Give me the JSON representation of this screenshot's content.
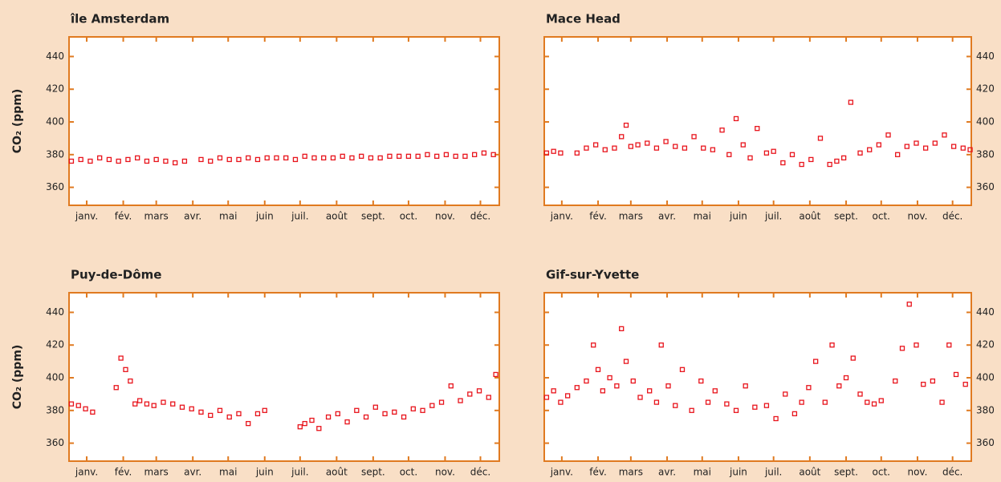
{
  "chart_data": [
    {
      "type": "scatter",
      "title": "île Amsterdam",
      "ylabel": "CO₂ (ppm)",
      "yaxis": "left",
      "color": "#e8141c",
      "x": [
        2,
        10,
        18,
        26,
        34,
        42,
        50,
        58,
        66,
        74,
        82,
        90,
        98,
        112,
        120,
        128,
        136,
        144,
        152,
        160,
        168,
        176,
        184,
        192,
        200,
        208,
        216,
        224,
        232,
        240,
        248,
        256,
        264,
        272,
        280,
        288,
        296,
        304,
        312,
        320,
        328,
        336,
        344,
        352,
        360
      ],
      "values": [
        376,
        377,
        376,
        378,
        377,
        376,
        377,
        378,
        376,
        377,
        376,
        375,
        376,
        377,
        376,
        378,
        377,
        377,
        378,
        377,
        378,
        378,
        378,
        377,
        379,
        378,
        378,
        378,
        379,
        378,
        379,
        378,
        378,
        379,
        379,
        379,
        379,
        380,
        379,
        380,
        379,
        379,
        380,
        381,
        380
      ],
      "xlim": [
        0,
        365
      ],
      "xticks": [
        {
          "value": 15,
          "label": "janv."
        },
        {
          "value": 46,
          "label": "fév."
        },
        {
          "value": 74,
          "label": "mars"
        },
        {
          "value": 105,
          "label": "avr."
        },
        {
          "value": 135,
          "label": "mai"
        },
        {
          "value": 166,
          "label": "juin"
        },
        {
          "value": 196,
          "label": "juil."
        },
        {
          "value": 227,
          "label": "août"
        },
        {
          "value": 258,
          "label": "sept."
        },
        {
          "value": 288,
          "label": "oct."
        },
        {
          "value": 319,
          "label": "nov."
        },
        {
          "value": 349,
          "label": "déc."
        }
      ],
      "ylim": [
        349,
        452
      ],
      "yticks": [
        360,
        380,
        400,
        420,
        440
      ]
    },
    {
      "type": "scatter",
      "title": "Mace Head",
      "yaxis": "right",
      "color": "#e8141c",
      "x": [
        2,
        8,
        14,
        28,
        36,
        44,
        52,
        60,
        66,
        70,
        74,
        80,
        88,
        96,
        104,
        112,
        120,
        128,
        136,
        144,
        152,
        158,
        164,
        170,
        176,
        182,
        190,
        196,
        204,
        212,
        220,
        228,
        236,
        244,
        250,
        256,
        262,
        270,
        278,
        286,
        294,
        302,
        310,
        318,
        326,
        334,
        342,
        350,
        358,
        364
      ],
      "values": [
        381,
        382,
        381,
        381,
        384,
        386,
        383,
        384,
        391,
        398,
        385,
        386,
        387,
        384,
        388,
        385,
        384,
        391,
        384,
        383,
        395,
        380,
        402,
        386,
        378,
        396,
        381,
        382,
        375,
        380,
        374,
        377,
        390,
        374,
        376,
        378,
        412,
        381,
        383,
        386,
        392,
        380,
        385,
        387,
        384,
        387,
        392,
        385,
        384,
        383
      ],
      "xlim": [
        0,
        365
      ],
      "xticks": [
        {
          "value": 15,
          "label": "janv."
        },
        {
          "value": 46,
          "label": "fév."
        },
        {
          "value": 74,
          "label": "mars"
        },
        {
          "value": 105,
          "label": "avr."
        },
        {
          "value": 135,
          "label": "mai"
        },
        {
          "value": 166,
          "label": "juin"
        },
        {
          "value": 196,
          "label": "juil."
        },
        {
          "value": 227,
          "label": "août"
        },
        {
          "value": 258,
          "label": "sept."
        },
        {
          "value": 288,
          "label": "oct."
        },
        {
          "value": 319,
          "label": "nov."
        },
        {
          "value": 349,
          "label": "déc."
        }
      ],
      "ylim": [
        349,
        452
      ],
      "yticks": [
        360,
        380,
        400,
        420,
        440
      ]
    },
    {
      "type": "scatter",
      "title": "Puy-de-Dôme",
      "ylabel": "CO₂ (ppm)",
      "yaxis": "left",
      "color": "#e8141c",
      "x": [
        2,
        8,
        14,
        20,
        40,
        44,
        48,
        52,
        56,
        60,
        66,
        72,
        80,
        88,
        96,
        104,
        112,
        120,
        128,
        136,
        144,
        152,
        160,
        166,
        196,
        200,
        206,
        212,
        220,
        228,
        236,
        244,
        252,
        260,
        268,
        276,
        284,
        292,
        300,
        308,
        316,
        324,
        332,
        340,
        348,
        356,
        362
      ],
      "values": [
        384,
        383,
        381,
        379,
        394,
        412,
        405,
        398,
        384,
        386,
        384,
        383,
        385,
        384,
        382,
        381,
        379,
        377,
        380,
        376,
        378,
        372,
        378,
        380,
        370,
        372,
        374,
        369,
        376,
        378,
        373,
        380,
        376,
        382,
        378,
        379,
        376,
        381,
        380,
        383,
        385,
        395,
        386,
        390,
        392,
        388,
        402
      ],
      "xlim": [
        0,
        365
      ],
      "xticks": [
        {
          "value": 15,
          "label": "janv."
        },
        {
          "value": 46,
          "label": "fév."
        },
        {
          "value": 74,
          "label": "mars"
        },
        {
          "value": 105,
          "label": "avr."
        },
        {
          "value": 135,
          "label": "mai"
        },
        {
          "value": 166,
          "label": "juin"
        },
        {
          "value": 196,
          "label": "juil."
        },
        {
          "value": 227,
          "label": "août"
        },
        {
          "value": 258,
          "label": "sept."
        },
        {
          "value": 288,
          "label": "oct."
        },
        {
          "value": 319,
          "label": "nov."
        },
        {
          "value": 349,
          "label": "déc."
        }
      ],
      "ylim": [
        349,
        452
      ],
      "yticks": [
        360,
        380,
        400,
        420,
        440
      ]
    },
    {
      "type": "scatter",
      "title": "Gif-sur-Yvette",
      "yaxis": "right",
      "color": "#e8141c",
      "x": [
        2,
        8,
        14,
        20,
        28,
        36,
        42,
        46,
        50,
        56,
        62,
        66,
        70,
        76,
        82,
        90,
        96,
        100,
        106,
        112,
        118,
        126,
        134,
        140,
        146,
        156,
        164,
        172,
        180,
        190,
        198,
        206,
        214,
        220,
        226,
        232,
        240,
        246,
        252,
        258,
        264,
        270,
        276,
        282,
        288,
        300,
        306,
        312,
        318,
        324,
        332,
        340,
        346,
        352,
        360
      ],
      "values": [
        388,
        392,
        385,
        389,
        394,
        398,
        420,
        405,
        392,
        400,
        395,
        430,
        410,
        398,
        388,
        392,
        385,
        420,
        395,
        383,
        405,
        380,
        398,
        385,
        392,
        384,
        380,
        395,
        382,
        383,
        375,
        390,
        378,
        385,
        394,
        410,
        385,
        420,
        395,
        400,
        412,
        390,
        385,
        384,
        386,
        398,
        418,
        445,
        420,
        396,
        398,
        385,
        420,
        402,
        396
      ],
      "xlim": [
        0,
        365
      ],
      "xticks": [
        {
          "value": 15,
          "label": "janv."
        },
        {
          "value": 46,
          "label": "fév."
        },
        {
          "value": 74,
          "label": "mars"
        },
        {
          "value": 105,
          "label": "avr."
        },
        {
          "value": 135,
          "label": "mai"
        },
        {
          "value": 166,
          "label": "juin"
        },
        {
          "value": 196,
          "label": "juil."
        },
        {
          "value": 227,
          "label": "août"
        },
        {
          "value": 258,
          "label": "sept."
        },
        {
          "value": 288,
          "label": "oct."
        },
        {
          "value": 319,
          "label": "nov."
        },
        {
          "value": 349,
          "label": "déc."
        }
      ],
      "ylim": [
        349,
        452
      ],
      "yticks": [
        360,
        380,
        400,
        420,
        440
      ]
    }
  ]
}
